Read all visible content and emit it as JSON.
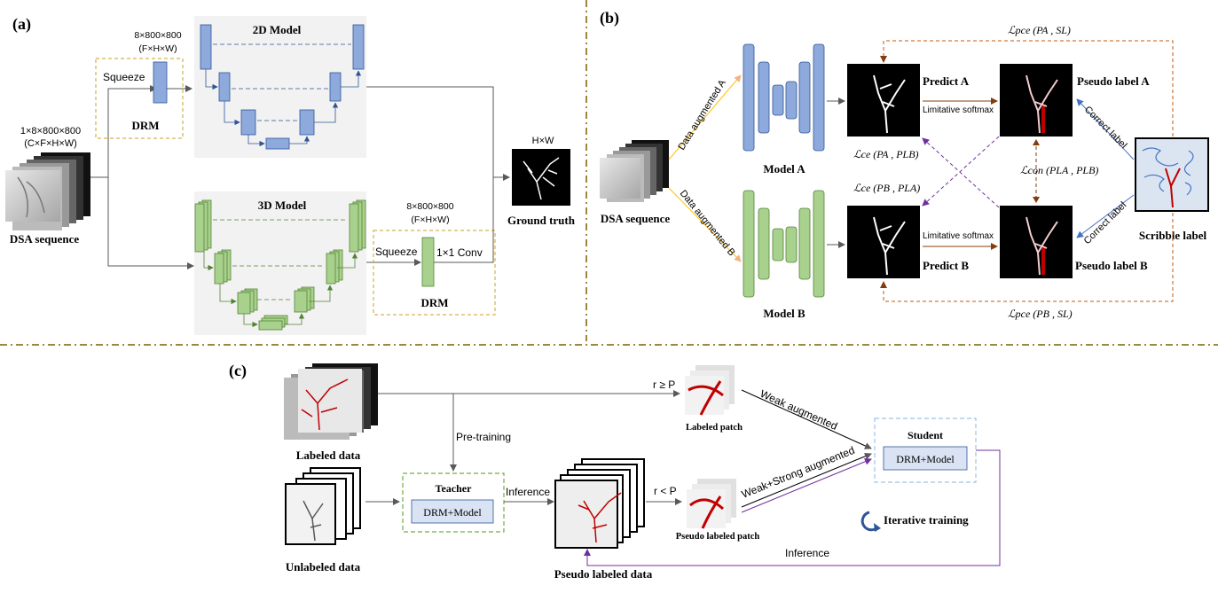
{
  "panel_a": {
    "tag": "(a)",
    "input_dims": "1×8×800×800",
    "input_dims_sub": "(C×F×H×W)",
    "input_label": "DSA sequence",
    "drm_top_dims": "8×800×800",
    "drm_top_dims_sub": "(F×H×W)",
    "drm_top_squeeze": "Squeeze",
    "drm_top_label": "DRM",
    "model_2d_title": "2D Model",
    "model_3d_title": "3D Model",
    "drm_bottom_dims": "8×800×800",
    "drm_bottom_dims_sub": "(F×H×W)",
    "drm_bottom_squeeze": "Squeeze",
    "drm_bottom_conv": "1×1 Conv",
    "drm_bottom_label": "DRM",
    "output_dims": "H×W",
    "output_label": "Ground truth"
  },
  "panel_b": {
    "tag": "(b)",
    "input_label": "DSA sequence",
    "aug_a": "Data augmented A",
    "aug_b": "Data augmented B",
    "model_a": "Model A",
    "model_b": "Model B",
    "predict_a": "Predict A",
    "predict_b": "Predict B",
    "pseudo_a": "Pseudo label A",
    "pseudo_b": "Pseudo label B",
    "limitative_softmax_top": "Limitative softmax",
    "limitative_softmax_bottom": "Limitative softmax",
    "scribble_label": "Scribble label",
    "correct_label_top": "Correct label",
    "correct_label_bottom": "Correct label",
    "loss_pce_a": "ℒpce (PA , SL)",
    "loss_pce_b": "ℒpce (PB , SL)",
    "loss_ce_a": "ℒce (PA , PLB)",
    "loss_ce_b": "ℒce (PB , PLA)",
    "loss_con": "ℒcon (PLA , PLB)"
  },
  "panel_c": {
    "tag": "(c)",
    "labeled_data": "Labeled data",
    "unlabeled_data": "Unlabeled data",
    "pretraining": "Pre-training",
    "teacher_title": "Teacher",
    "teacher_box": "DRM+Model",
    "inference_top": "Inference",
    "pseudo_labeled_data": "Pseudo labeled data",
    "r_ge_p": "r ≥ P",
    "r_lt_p": "r < P",
    "labeled_patch": "Labeled patch",
    "pseudo_labeled_patch": "Pseudo labeled patch",
    "weak_aug": "Weak augmented",
    "weak_strong_aug": "Weak+Strong augmented",
    "student_title": "Student",
    "student_box": "DRM+Model",
    "iterative_training": "Iterative training",
    "inference_bottom": "Inference"
  },
  "colors": {
    "blue_block": "#8ea9db",
    "green_block": "#a9d18e",
    "divider": "#7f6000",
    "drm_border": "#c9a227",
    "teacher_border": "#70ad47",
    "student_border": "#9dc3e6",
    "purple": "#7030a0",
    "orange_dash": "#c55a11",
    "vessel_red": "#c00000"
  }
}
